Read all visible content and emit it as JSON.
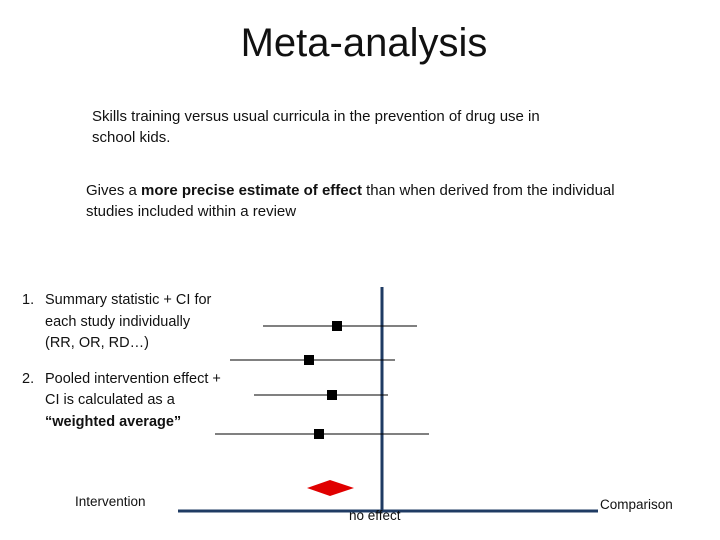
{
  "title": "Meta-analysis",
  "subtitle": "Skills training versus usual curricula in the prevention of drug use in school kids.",
  "description": {
    "before": "Gives a ",
    "bold": "more precise estimate of effect",
    "after": " than when derived from the individual studies included within a review"
  },
  "steps": [
    {
      "num": "1.",
      "text": "Summary statistic + CI for each study individually (RR, OR, RD…)",
      "bold_tail": ""
    },
    {
      "num": "2.",
      "text": "Pooled intervention effect + CI is calculated as a ",
      "bold_tail": "“weighted average”"
    }
  ],
  "axis_labels": {
    "left": "Intervention",
    "center": "no effect",
    "right": "Comparison"
  },
  "colors": {
    "axis": "#1f3b63",
    "marker": "#000000",
    "pooled": "#e00000"
  }
}
